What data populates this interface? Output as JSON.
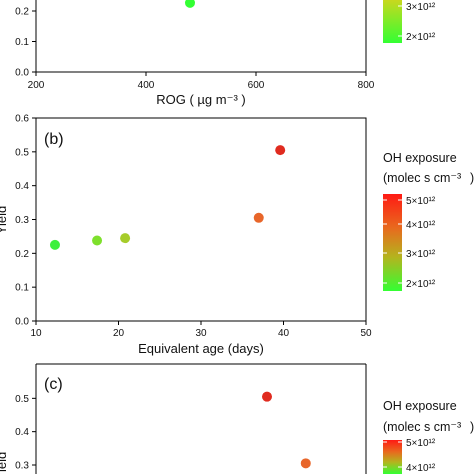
{
  "chart_data": [
    {
      "panel_label": "",
      "type": "scatter",
      "xlabel": "ROG ( µg  m⁻³ )",
      "ylabel": "",
      "xlim": [
        200,
        800
      ],
      "ylim": [
        0,
        0.25
      ],
      "x_ticks": [
        "200",
        "400",
        "600",
        "800"
      ],
      "y_ticks": [
        "0.0",
        "0.1",
        "0.2"
      ],
      "points": [
        {
          "x": 480,
          "y": 0.22,
          "color": "#33ff33"
        }
      ],
      "colorbar": {
        "ticks": [
          "3×10¹²",
          "2×10¹²"
        ]
      }
    },
    {
      "panel_label": "(b)",
      "type": "scatter",
      "xlabel": "Equivalent age (days)",
      "ylabel": "Yield",
      "xlim": [
        10,
        50
      ],
      "ylim": [
        0,
        0.6
      ],
      "x_ticks": [
        "10",
        "20",
        "30",
        "40",
        "50"
      ],
      "y_ticks": [
        "0.0",
        "0.1",
        "0.2",
        "0.3",
        "0.4",
        "0.5",
        "0.6"
      ],
      "points": [
        {
          "x": 12.3,
          "y": 0.225,
          "color": "#3cf03c"
        },
        {
          "x": 17.4,
          "y": 0.238,
          "color": "#7ee02c"
        },
        {
          "x": 20.8,
          "y": 0.245,
          "color": "#a6cc2a"
        },
        {
          "x": 37.0,
          "y": 0.305,
          "color": "#e8662a"
        },
        {
          "x": 39.6,
          "y": 0.505,
          "color": "#e02b1f"
        }
      ],
      "colorbar": {
        "title_line1": "OH exposure",
        "title_line2": "(molec s cm⁻³",
        "title_paren_close": ")",
        "ticks": [
          "5×10¹²",
          "4×10¹²",
          "3×10¹²",
          "2×10¹²"
        ]
      }
    },
    {
      "panel_label": "(c)",
      "type": "scatter",
      "xlabel": "",
      "ylabel": "",
      "ylim": [
        0.2,
        0.6
      ],
      "y_ticks": [
        "0.3",
        "0.4",
        "0.5",
        "0.6"
      ],
      "points": [
        {
          "x": 38.0,
          "y": 0.505,
          "color": "#e02b1f"
        },
        {
          "x": 42.7,
          "y": 0.305,
          "color": "#e8662a"
        }
      ],
      "colorbar": {
        "title_line1": "OH exposure",
        "title_line2": "(molec s cm⁻³",
        "title_paren_close": ")",
        "ticks": [
          "5×10¹²",
          "4×10¹²"
        ]
      }
    }
  ]
}
